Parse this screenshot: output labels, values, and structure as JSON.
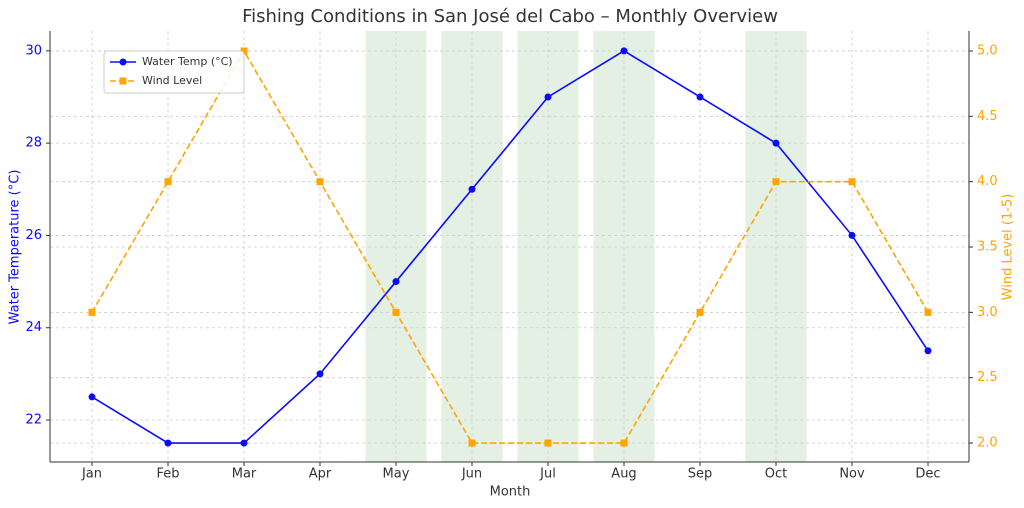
{
  "chart_data": {
    "type": "line",
    "title": "Fishing Conditions in San José del Cabo – Monthly Overview",
    "xlabel": "Month",
    "ylabel": "Water Temperature (°C)",
    "y2label": "Wind Level (1-5)",
    "categories": [
      "Jan",
      "Feb",
      "Mar",
      "Apr",
      "May",
      "Jun",
      "Jul",
      "Aug",
      "Sep",
      "Oct",
      "Nov",
      "Dec"
    ],
    "series": [
      {
        "name": "Water Temp (°C)",
        "color": "#0a0aff",
        "marker": "circle",
        "dash": false,
        "axis": "y",
        "values": [
          22.5,
          21.5,
          21.5,
          23,
          25,
          27,
          29,
          30,
          29,
          28,
          26,
          23.5
        ]
      },
      {
        "name": "Wind Level",
        "color": "#ffa500",
        "marker": "square",
        "dash": true,
        "axis": "y2",
        "values": [
          3,
          4,
          5,
          4,
          3,
          2,
          2,
          2,
          3,
          4,
          4,
          3
        ]
      }
    ],
    "highlight_indices": [
      4,
      5,
      6,
      7,
      9
    ],
    "highlight_color": "#e3f0e3",
    "ylim": [
      21.09,
      30.43
    ],
    "yticks": [
      22,
      24,
      26,
      28,
      30
    ],
    "y2lim": [
      1.855,
      5.153
    ],
    "y2ticks": [
      {
        "value": 2,
        "label": "2.0"
      },
      2.5,
      {
        "value": 3,
        "label": "3.0"
      },
      3.5,
      {
        "value": 4,
        "label": "4.0"
      },
      4.5,
      {
        "value": 5,
        "label": "5.0"
      }
    ],
    "grid": true,
    "legend": "upper-left"
  }
}
